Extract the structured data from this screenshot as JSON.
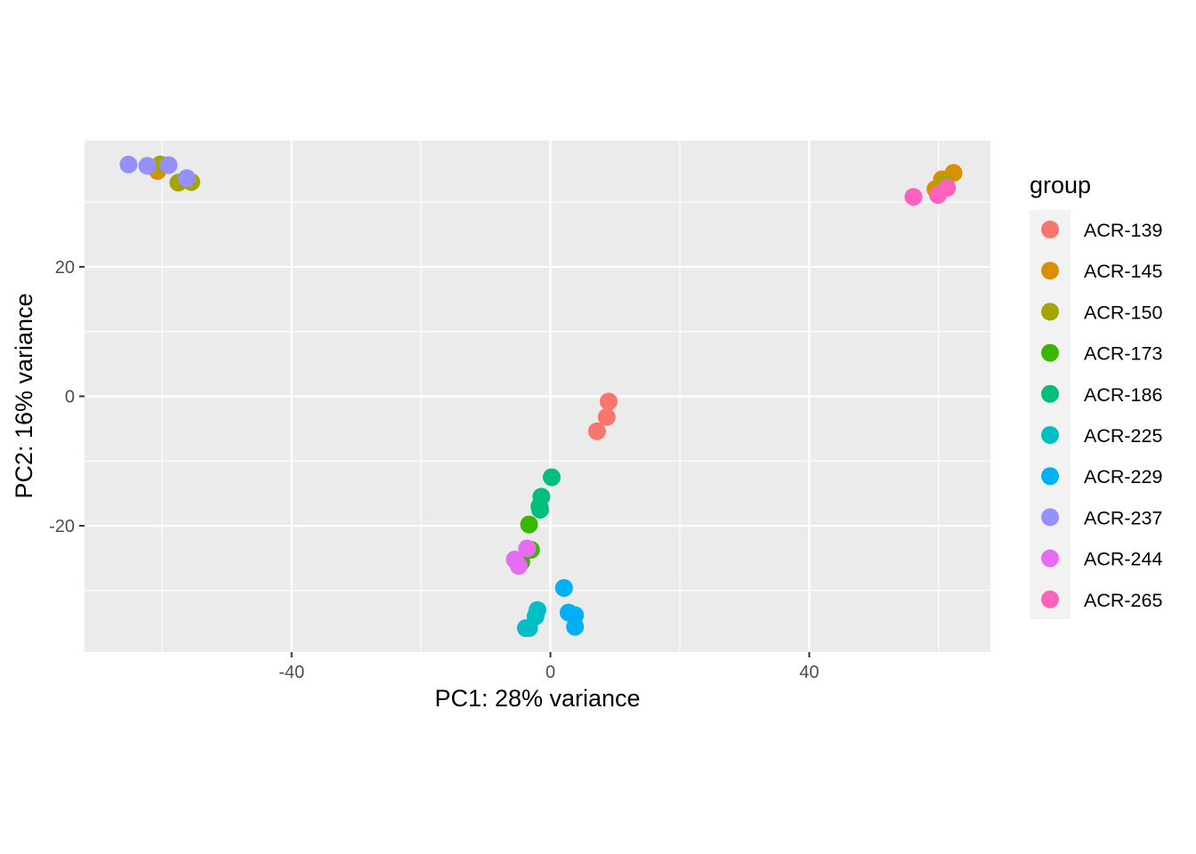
{
  "chart_data": {
    "type": "scatter",
    "title": "",
    "xlabel": "PC1: 28% variance",
    "ylabel": "PC2: 16% variance",
    "xlim": [
      -72,
      68
    ],
    "ylim": [
      -39.5,
      39.5
    ],
    "x_ticks": [
      -40,
      0,
      40
    ],
    "y_ticks": [
      -20,
      0,
      20
    ],
    "grid": true,
    "legend": {
      "title": "group",
      "position": "right"
    },
    "series": [
      {
        "name": "ACR-139",
        "color": "#F8766D",
        "points": [
          [
            9,
            -0.8
          ],
          [
            8.7,
            -3.2
          ],
          [
            7.2,
            -5.4
          ]
        ]
      },
      {
        "name": "ACR-145",
        "color": "#D89000",
        "points": [
          [
            62.3,
            34.5
          ],
          [
            60.5,
            33.5
          ],
          [
            59.5,
            32
          ],
          [
            -60.7,
            34.8
          ]
        ]
      },
      {
        "name": "ACR-150",
        "color": "#A3A500",
        "points": [
          [
            -60.3,
            35.8
          ],
          [
            -57.5,
            33
          ],
          [
            -55.5,
            33.1
          ],
          [
            61,
            33
          ]
        ]
      },
      {
        "name": "ACR-173",
        "color": "#39B600",
        "points": [
          [
            -3.3,
            -19.8
          ],
          [
            -3,
            -23.7
          ],
          [
            -4.5,
            -25.6
          ]
        ]
      },
      {
        "name": "ACR-186",
        "color": "#00BF7D",
        "points": [
          [
            0.2,
            -12.5
          ],
          [
            -1.4,
            -15.5
          ],
          [
            -1.7,
            -17
          ],
          [
            -1.6,
            -17.5
          ]
        ]
      },
      {
        "name": "ACR-225",
        "color": "#00BFC4",
        "points": [
          [
            -2,
            -33
          ],
          [
            -2.3,
            -34
          ],
          [
            -3.8,
            -35.8
          ],
          [
            -3.3,
            -35.8
          ]
        ]
      },
      {
        "name": "ACR-229",
        "color": "#00B0F6",
        "points": [
          [
            2.1,
            -29.6
          ],
          [
            2.8,
            -33.4
          ],
          [
            3.8,
            -33.8
          ],
          [
            3.8,
            -35.6
          ]
        ]
      },
      {
        "name": "ACR-237",
        "color": "#9590FF",
        "points": [
          [
            -65.2,
            35.8
          ],
          [
            -62.3,
            35.6
          ],
          [
            -59,
            35.7
          ],
          [
            -56.2,
            33.7
          ]
        ]
      },
      {
        "name": "ACR-244",
        "color": "#E76BF3",
        "points": [
          [
            -3.6,
            -23.5
          ],
          [
            -5.5,
            -25.2
          ],
          [
            -4.9,
            -26.2
          ]
        ]
      },
      {
        "name": "ACR-265",
        "color": "#FF62BC",
        "points": [
          [
            56.1,
            30.8
          ],
          [
            59.9,
            31.1
          ],
          [
            61.3,
            32.2
          ]
        ]
      }
    ]
  }
}
